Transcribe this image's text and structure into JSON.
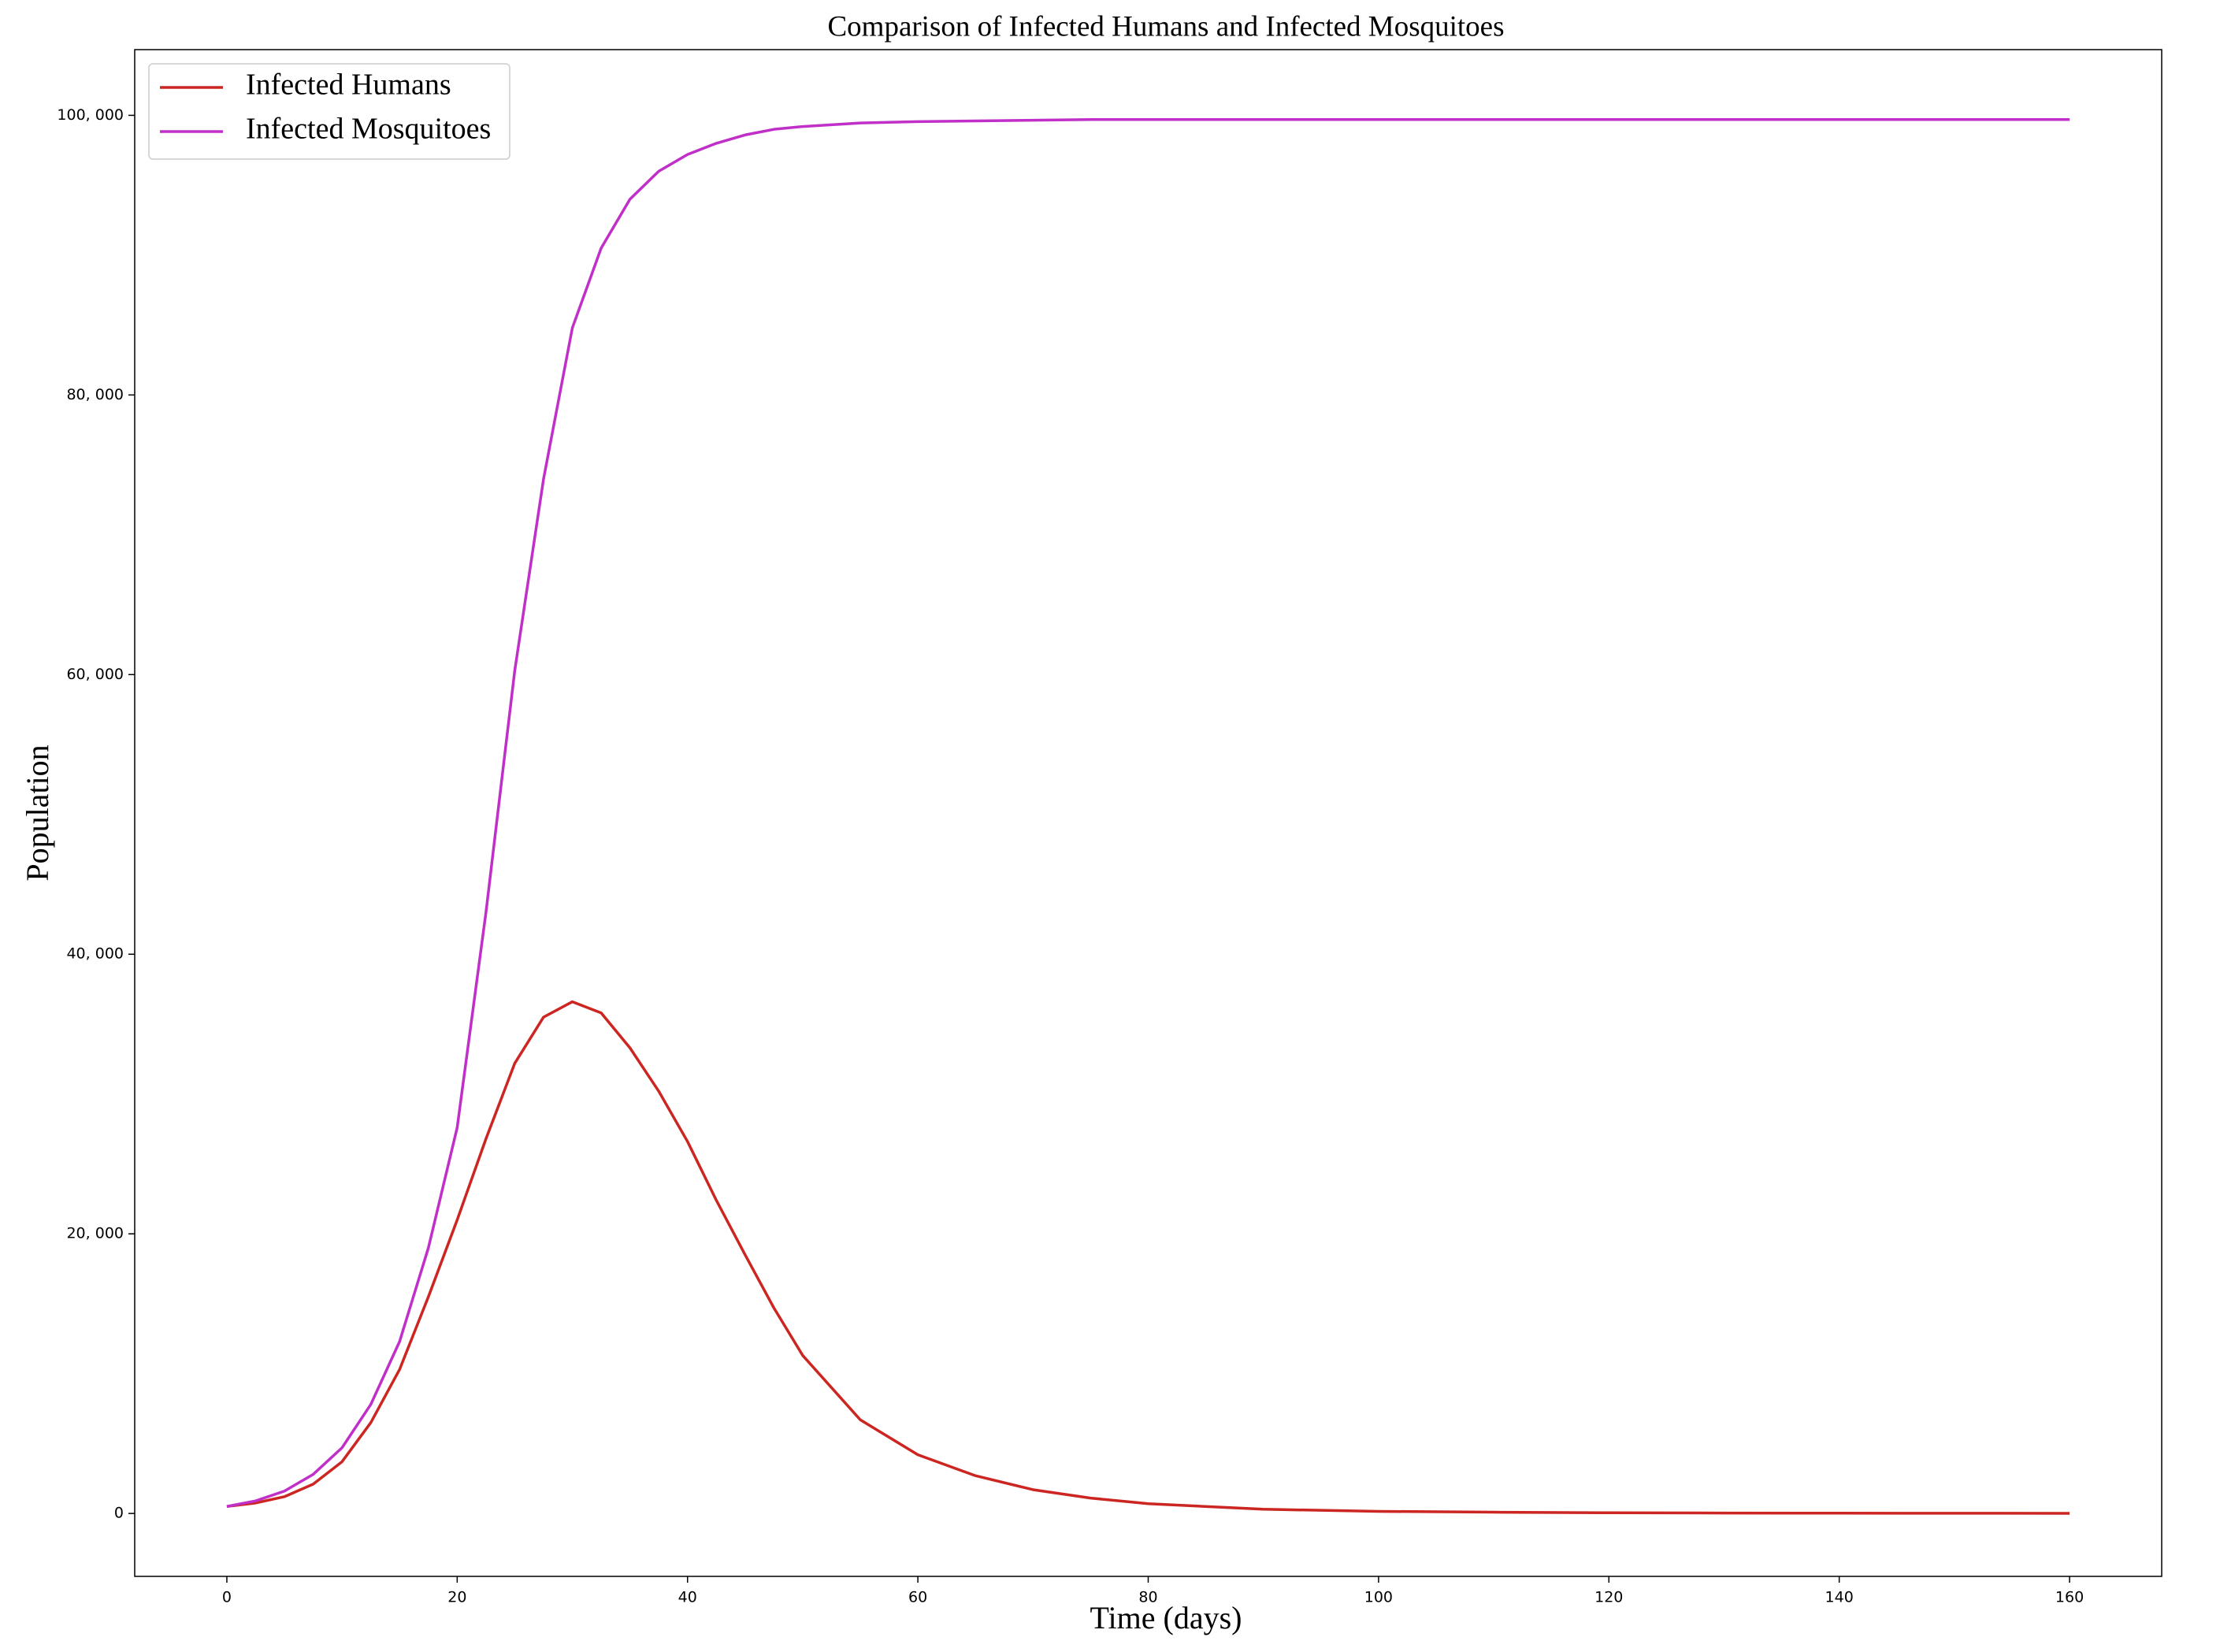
{
  "chart_data": {
    "type": "line",
    "title": "Comparison of Infected Humans and Infected Mosquitoes",
    "xlabel": "Time (days)",
    "ylabel": "Population",
    "x": [
      0,
      2.5,
      5,
      7.5,
      10,
      12.5,
      15,
      17.5,
      20,
      22.5,
      25,
      27.5,
      30,
      32.5,
      35,
      37.5,
      40,
      42.5,
      45,
      47.5,
      50,
      55,
      60,
      65,
      70,
      75,
      80,
      90,
      100,
      110,
      120,
      130,
      140,
      150,
      160
    ],
    "series": [
      {
        "name": "Infected Humans",
        "color": "#cc2622",
        "values": [
          500,
          750,
          1200,
          2100,
          3700,
          6500,
          10300,
          15500,
          21000,
          26800,
          32200,
          35500,
          36600,
          35800,
          33300,
          30200,
          26600,
          22400,
          18500,
          14700,
          11300,
          6700,
          4200,
          2700,
          1700,
          1100,
          700,
          300,
          150,
          90,
          50,
          30,
          20,
          15,
          10
        ]
      },
      {
        "name": "Infected Mosquitoes",
        "color": "#c030c8",
        "values": [
          500,
          900,
          1600,
          2800,
          4700,
          7800,
          12300,
          19000,
          27600,
          43000,
          60300,
          74000,
          84800,
          90500,
          94000,
          96000,
          97200,
          98000,
          98600,
          99000,
          99200,
          99450,
          99550,
          99600,
          99650,
          99700,
          99700,
          99700,
          99700,
          99700,
          99700,
          99700,
          99700,
          99700,
          99700
        ]
      }
    ],
    "xlim": [
      -8,
      168
    ],
    "xticks": [
      0,
      20,
      40,
      60,
      80,
      100,
      120,
      140,
      160
    ],
    "ylim": [
      -4500,
      104700
    ],
    "yticks": [
      0,
      {
        "value": 20000,
        "label": "20, 000"
      },
      {
        "value": 40000,
        "label": "40, 000"
      },
      {
        "value": 60000,
        "label": "60, 000"
      },
      {
        "value": 80000,
        "label": "80, 000"
      },
      {
        "value": 100000,
        "label": "100, 000"
      }
    ],
    "legend": "upper left",
    "grid": false
  }
}
